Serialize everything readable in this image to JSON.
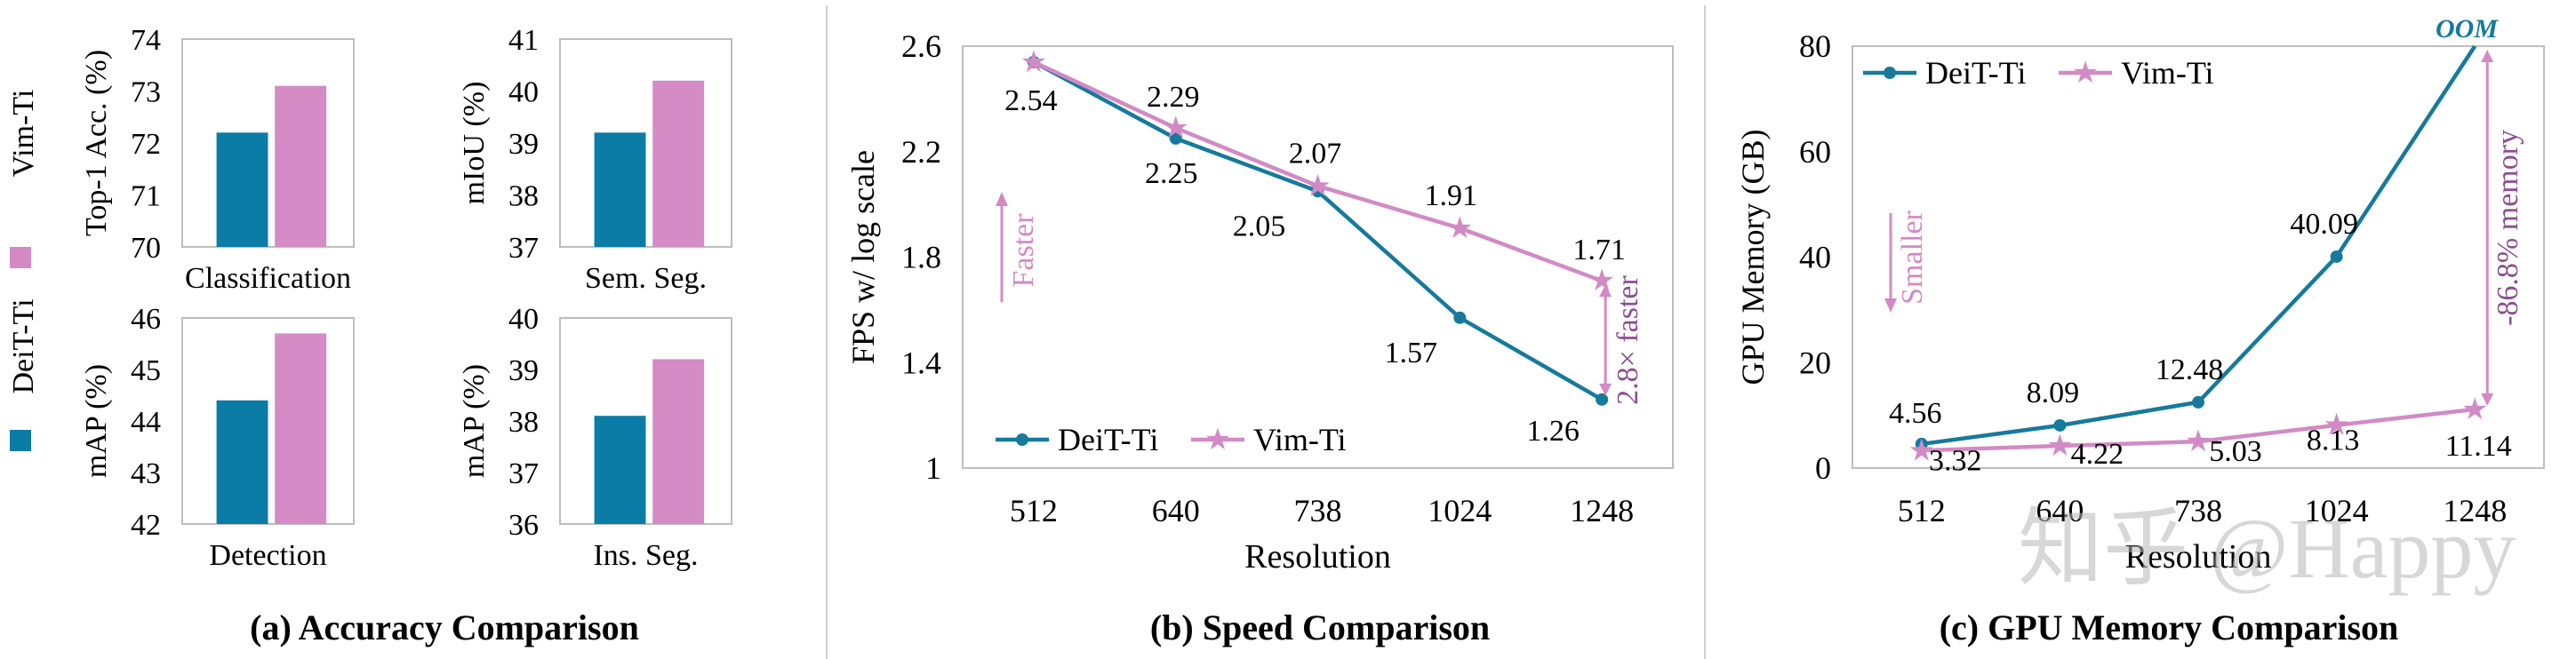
{
  "colors": {
    "deit": "#0b7ca6",
    "vim": "#d58bc6",
    "deit_line": "#167a9c",
    "vim_line": "#d28ac5",
    "accent_text": "#8c4d91",
    "vim_fill": "#d589c4"
  },
  "legend_side": {
    "vim": "Vim-Ti",
    "deit": "DeiT-Ti"
  },
  "panel_a": {
    "caption": "(a) Accuracy Comparison",
    "subplots": [
      {
        "xlabel": "Classification",
        "ylabel": "Top-1 Acc. (%)",
        "ylim": [
          70,
          74
        ],
        "ticks": [
          70,
          71,
          72,
          73,
          74
        ],
        "deit": 72.2,
        "vim": 73.1
      },
      {
        "xlabel": "Sem. Seg.",
        "ylabel": "mIoU (%)",
        "ylim": [
          37,
          41
        ],
        "ticks": [
          37,
          38,
          39,
          40,
          41
        ],
        "deit": 39.2,
        "vim": 40.2
      },
      {
        "xlabel": "Detection",
        "ylabel": "mAP (%)",
        "ylim": [
          42,
          46
        ],
        "ticks": [
          42,
          43,
          44,
          45,
          46
        ],
        "deit": 44.4,
        "vim": 45.7
      },
      {
        "xlabel": "Ins. Seg.",
        "ylabel": "mAP (%)",
        "ylim": [
          36,
          40
        ],
        "ticks": [
          36,
          37,
          38,
          39,
          40
        ],
        "deit": 38.1,
        "vim": 39.2
      }
    ]
  },
  "panel_b": {
    "caption": "(b) Speed Comparison",
    "xlabel": "Resolution",
    "ylabel": "FPS w/ log scale",
    "categories": [
      "512",
      "640",
      "738",
      "1024",
      "1248"
    ],
    "ylim": [
      1,
      2.6
    ],
    "yticks": [
      1,
      1.4,
      1.8,
      2.2,
      2.6
    ],
    "series": [
      {
        "name": "DeiT-Ti",
        "values": [
          2.54,
          2.25,
          2.05,
          1.57,
          1.26
        ],
        "labels": [
          "2.54",
          "2.25",
          "2.05",
          "1.57",
          "1.26"
        ]
      },
      {
        "name": "Vim-Ti",
        "values": [
          2.54,
          2.29,
          2.07,
          1.91,
          1.71
        ],
        "labels": [
          "",
          "2.29",
          "2.07",
          "1.91",
          "1.71"
        ]
      }
    ],
    "hint": "Faster",
    "annotation": "2.8× faster"
  },
  "panel_c": {
    "caption": "(c) GPU Memory Comparison",
    "xlabel": "Resolution",
    "ylabel": "GPU Memory (GB)",
    "categories": [
      "512",
      "640",
      "738",
      "1024",
      "1248"
    ],
    "ylim": [
      0,
      80
    ],
    "yticks": [
      0,
      20,
      40,
      60,
      80
    ],
    "series": [
      {
        "name": "DeiT-Ti",
        "values": [
          4.56,
          8.09,
          12.48,
          40.09,
          80
        ],
        "labels": [
          "4.56",
          "8.09",
          "12.48",
          "40.09",
          ""
        ]
      },
      {
        "name": "Vim-Ti",
        "values": [
          3.32,
          4.22,
          5.03,
          8.13,
          11.14
        ],
        "labels": [
          "3.32",
          "4.22",
          "5.03",
          "8.13",
          "11.14"
        ]
      }
    ],
    "oom_label": "OOM",
    "hint": "Smaller",
    "annotation": "-86.8% memory",
    "watermark": "知乎 @Happy"
  }
}
